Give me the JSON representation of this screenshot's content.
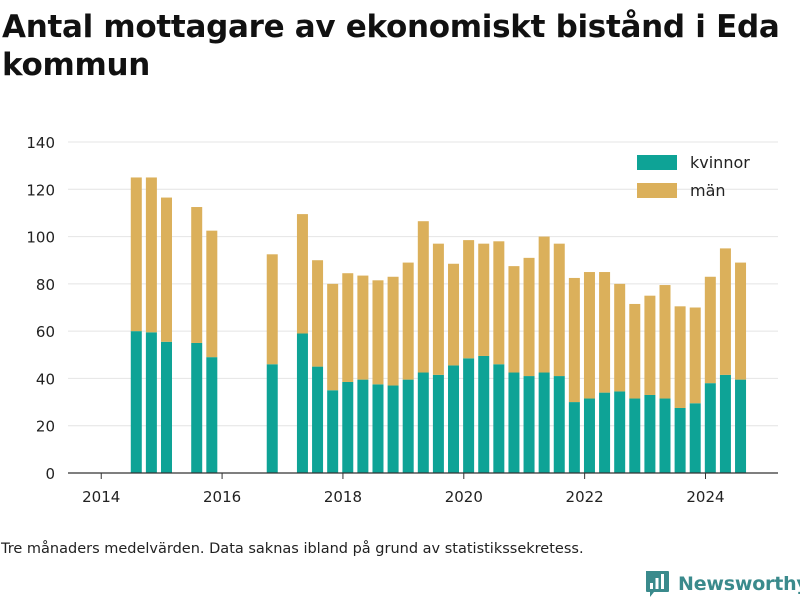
{
  "title": "Antal mottagare av ekonomiskt bistånd i Eda kommun",
  "footnote": "Tre månaders medelvärden. Data saknas ibland på grund av statistikssekretess.",
  "brand": {
    "name": "Newsworthy",
    "icon": "bar-chart-logo-icon"
  },
  "colors": {
    "kvinnor": "#0ea396",
    "man": "#dbb05b",
    "grid": "#e4e4e4",
    "axis": "#333333"
  },
  "chart_data": {
    "type": "bar",
    "stacked": true,
    "x_unit": "year (decimal)",
    "xlim": [
      2013.45,
      2025.2
    ],
    "ylim": [
      0,
      140
    ],
    "y_ticks": [
      "0",
      "20",
      "40",
      "60",
      "80",
      "100",
      "120",
      "140"
    ],
    "x_ticks": [
      "2014",
      "2016",
      "2018",
      "2020",
      "2022",
      "2024"
    ],
    "grid": "horizontal",
    "legend": "top-right",
    "series": [
      {
        "name": "kvinnor",
        "points": [
          [
            2014.58,
            60
          ],
          [
            2014.83,
            59.5
          ],
          [
            2015.08,
            55.5
          ],
          [
            2015.58,
            55
          ],
          [
            2015.83,
            49
          ],
          [
            2016.83,
            46
          ],
          [
            2017.33,
            59
          ],
          [
            2017.58,
            45
          ],
          [
            2017.83,
            35
          ],
          [
            2018.08,
            38.5
          ],
          [
            2018.33,
            39.5
          ],
          [
            2018.58,
            37.5
          ],
          [
            2018.83,
            37
          ],
          [
            2019.08,
            39.5
          ],
          [
            2019.33,
            42.5
          ],
          [
            2019.58,
            41.5
          ],
          [
            2019.83,
            45.5
          ],
          [
            2020.08,
            48.5
          ],
          [
            2020.33,
            49.5
          ],
          [
            2020.58,
            46
          ],
          [
            2020.83,
            42.5
          ],
          [
            2021.08,
            41
          ],
          [
            2021.33,
            42.5
          ],
          [
            2021.58,
            41
          ],
          [
            2021.83,
            30
          ],
          [
            2022.08,
            31.5
          ],
          [
            2022.33,
            34
          ],
          [
            2022.58,
            34.5
          ],
          [
            2022.83,
            31.5
          ],
          [
            2023.08,
            33
          ],
          [
            2023.33,
            31.5
          ],
          [
            2023.58,
            27.5
          ],
          [
            2023.83,
            29.5
          ],
          [
            2024.08,
            38
          ],
          [
            2024.33,
            41.5
          ],
          [
            2024.58,
            39.5
          ]
        ]
      },
      {
        "name": "män",
        "points": [
          [
            2014.58,
            65
          ],
          [
            2014.83,
            65.5
          ],
          [
            2015.08,
            61
          ],
          [
            2015.58,
            57.5
          ],
          [
            2015.83,
            53.5
          ],
          [
            2016.83,
            46.5
          ],
          [
            2017.33,
            50.5
          ],
          [
            2017.58,
            45
          ],
          [
            2017.83,
            45
          ],
          [
            2018.08,
            46
          ],
          [
            2018.33,
            44
          ],
          [
            2018.58,
            44
          ],
          [
            2018.83,
            46
          ],
          [
            2019.08,
            49.5
          ],
          [
            2019.33,
            64
          ],
          [
            2019.58,
            55.5
          ],
          [
            2019.83,
            43
          ],
          [
            2020.08,
            50
          ],
          [
            2020.33,
            47.5
          ],
          [
            2020.58,
            52
          ],
          [
            2020.83,
            45
          ],
          [
            2021.08,
            50
          ],
          [
            2021.33,
            57.5
          ],
          [
            2021.58,
            56
          ],
          [
            2021.83,
            52.5
          ],
          [
            2022.08,
            53.5
          ],
          [
            2022.33,
            51
          ],
          [
            2022.58,
            45.5
          ],
          [
            2022.83,
            40
          ],
          [
            2023.08,
            42
          ],
          [
            2023.33,
            48
          ],
          [
            2023.58,
            43
          ],
          [
            2023.83,
            40.5
          ],
          [
            2024.08,
            45
          ],
          [
            2024.33,
            53.5
          ],
          [
            2024.58,
            49.5
          ]
        ]
      }
    ]
  }
}
